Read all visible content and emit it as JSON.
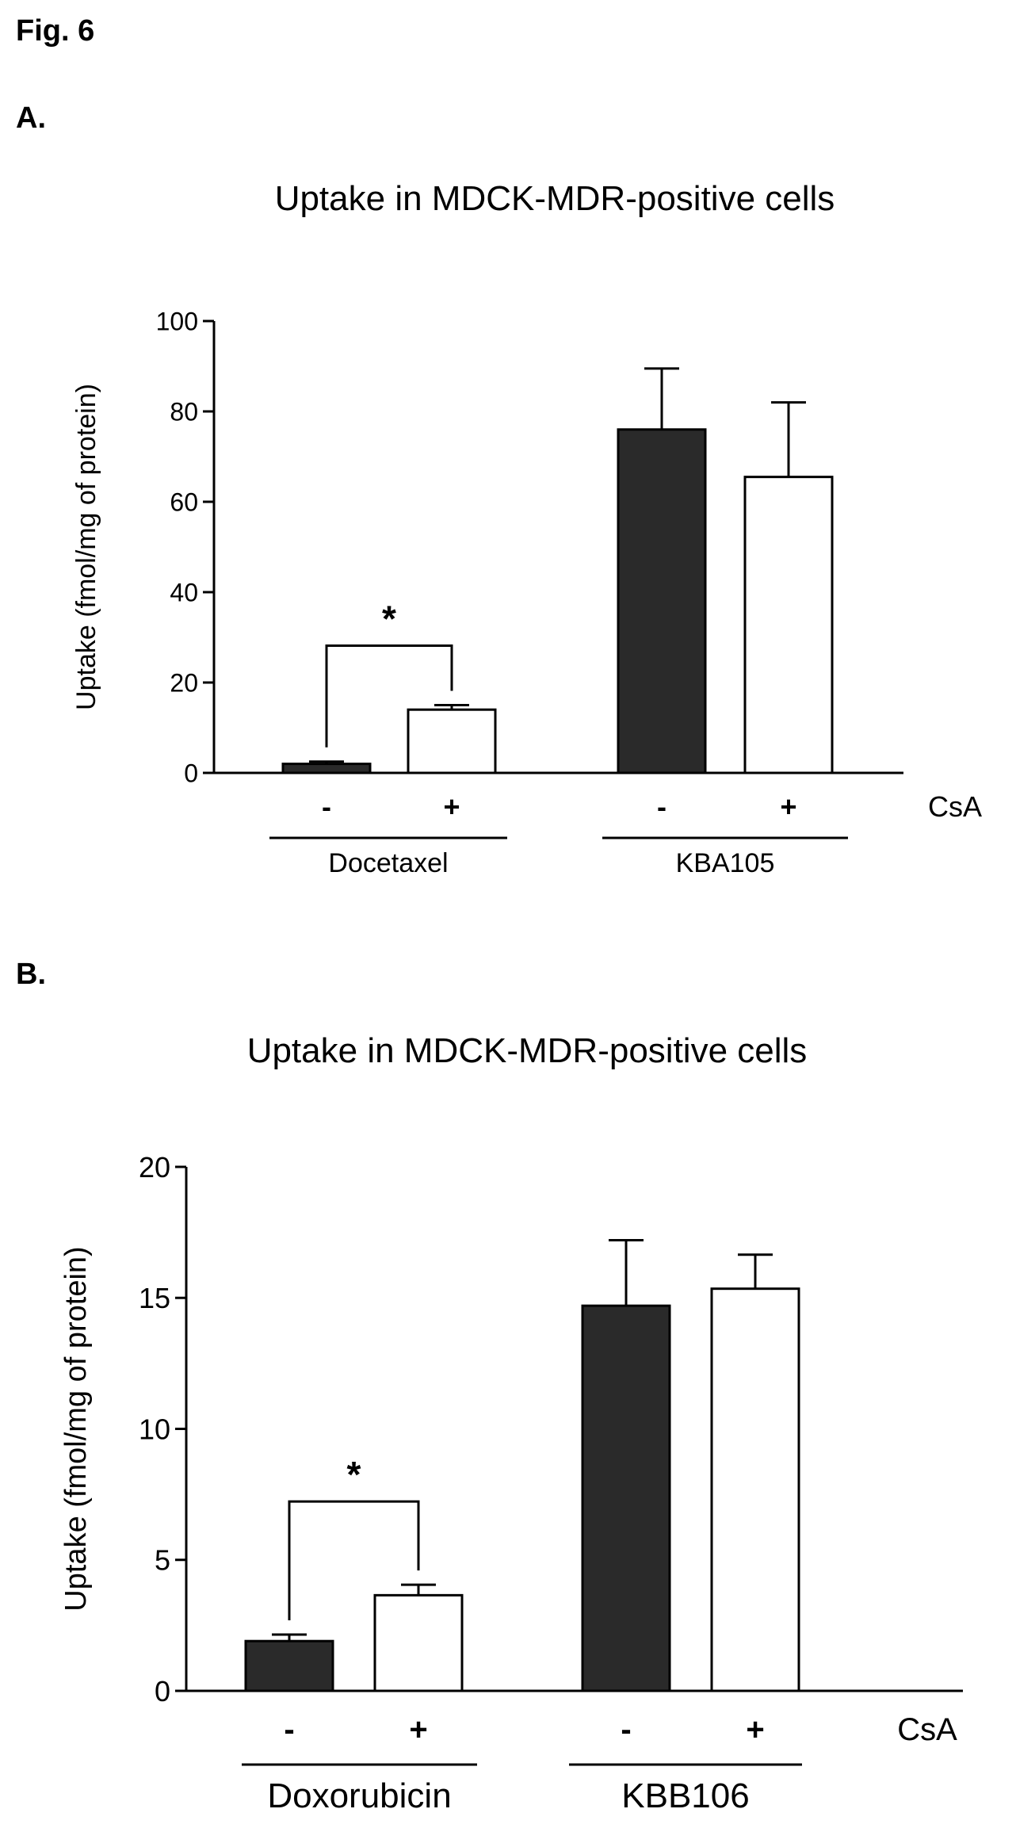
{
  "figure": {
    "title": "Fig. 6"
  },
  "panels": [
    {
      "label": "A."
    },
    {
      "label": "B."
    }
  ],
  "chart_data": [
    {
      "type": "bar",
      "title": "Uptake in MDCK-MDR-positive cells",
      "ylabel": "Uptake (fmol/mg of protein)",
      "xlabel": "",
      "ylim": [
        0,
        100
      ],
      "yticks": [
        "0",
        "20",
        "40",
        "60",
        "80",
        "100"
      ],
      "bars": [
        {
          "group": "Docetaxel",
          "condition": "-",
          "value": 2,
          "error": 0.5,
          "fill": "dark"
        },
        {
          "group": "Docetaxel",
          "condition": "+",
          "value": 14,
          "error": 1,
          "fill": "white"
        },
        {
          "group": "KBA105",
          "condition": "-",
          "value": 76,
          "error": 13.5,
          "fill": "dark"
        },
        {
          "group": "KBA105",
          "condition": "+",
          "value": 65.5,
          "error": 16.5,
          "fill": "white"
        }
      ],
      "condition_label": "CsA",
      "groups": [
        "Docetaxel",
        "KBA105"
      ],
      "significance": [
        {
          "group": "Docetaxel",
          "marker": "*"
        }
      ],
      "colors": {
        "dark": "#2a2a2a",
        "white": "#ffffff"
      }
    },
    {
      "type": "bar",
      "title": "Uptake in MDCK-MDR-positive cells",
      "ylabel": "Uptake (fmol/mg of protein)",
      "xlabel": "",
      "ylim": [
        0,
        20
      ],
      "yticks": [
        "0",
        "5",
        "10",
        "15",
        "20"
      ],
      "bars": [
        {
          "group": "Doxorubicin",
          "condition": "-",
          "value": 1.9,
          "error": 0.25,
          "fill": "dark"
        },
        {
          "group": "Doxorubicin",
          "condition": "+",
          "value": 3.65,
          "error": 0.4,
          "fill": "white"
        },
        {
          "group": "KBB106",
          "condition": "-",
          "value": 14.7,
          "error": 2.5,
          "fill": "dark"
        },
        {
          "group": "KBB106",
          "condition": "+",
          "value": 15.35,
          "error": 1.3,
          "fill": "white"
        }
      ],
      "condition_label": "CsA",
      "groups": [
        "Doxorubicin",
        "KBB106"
      ],
      "significance": [
        {
          "group": "Doxorubicin",
          "marker": "*"
        }
      ],
      "colors": {
        "dark": "#2a2a2a",
        "white": "#ffffff"
      }
    }
  ]
}
